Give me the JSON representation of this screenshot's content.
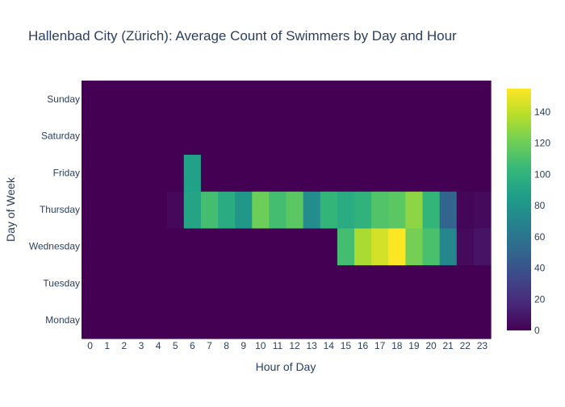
{
  "chart_data": {
    "type": "heatmap",
    "title": "Hallenbad City (Zürich): Average Count of Swimmers by Day and Hour",
    "xlabel": "Hour of Day",
    "ylabel": "Day of Week",
    "x": [
      "0",
      "1",
      "2",
      "3",
      "4",
      "5",
      "6",
      "7",
      "8",
      "9",
      "10",
      "11",
      "12",
      "13",
      "14",
      "15",
      "16",
      "17",
      "18",
      "19",
      "20",
      "21",
      "22",
      "23"
    ],
    "y": [
      "Monday",
      "Tuesday",
      "Wednesday",
      "Thursday",
      "Friday",
      "Saturday",
      "Sunday"
    ],
    "z": [
      [
        0,
        0,
        0,
        0,
        0,
        0,
        0,
        0,
        0,
        0,
        0,
        0,
        0,
        0,
        0,
        0,
        0,
        0,
        0,
        0,
        0,
        0,
        0,
        0
      ],
      [
        0,
        0,
        0,
        0,
        0,
        0,
        0,
        0,
        0,
        0,
        0,
        0,
        0,
        0,
        0,
        0,
        0,
        0,
        0,
        0,
        0,
        0,
        0,
        0
      ],
      [
        0,
        0,
        0,
        0,
        0,
        0,
        0,
        0,
        0,
        0,
        0,
        0,
        0,
        0,
        0,
        108,
        135,
        145,
        155,
        122,
        110,
        72,
        4,
        8
      ],
      [
        0,
        0,
        0,
        0,
        0,
        3,
        90,
        108,
        95,
        82,
        120,
        108,
        115,
        75,
        102,
        95,
        100,
        112,
        115,
        128,
        102,
        50,
        2,
        4
      ],
      [
        0,
        0,
        0,
        0,
        0,
        0,
        88,
        0,
        0,
        0,
        0,
        0,
        0,
        0,
        0,
        0,
        0,
        0,
        0,
        0,
        0,
        0,
        0,
        0
      ],
      [
        0,
        0,
        0,
        0,
        0,
        0,
        0,
        0,
        0,
        0,
        0,
        0,
        0,
        0,
        0,
        0,
        0,
        0,
        0,
        0,
        0,
        0,
        0,
        0
      ],
      [
        0,
        0,
        0,
        0,
        0,
        0,
        0,
        0,
        0,
        0,
        0,
        0,
        0,
        0,
        0,
        0,
        0,
        0,
        0,
        0,
        0,
        0,
        0,
        0
      ]
    ],
    "zmin": 0,
    "zmax": 155,
    "colorscale": "Viridis",
    "colorbar_ticks": [
      "0",
      "20",
      "40",
      "60",
      "80",
      "100",
      "120",
      "140"
    ]
  }
}
